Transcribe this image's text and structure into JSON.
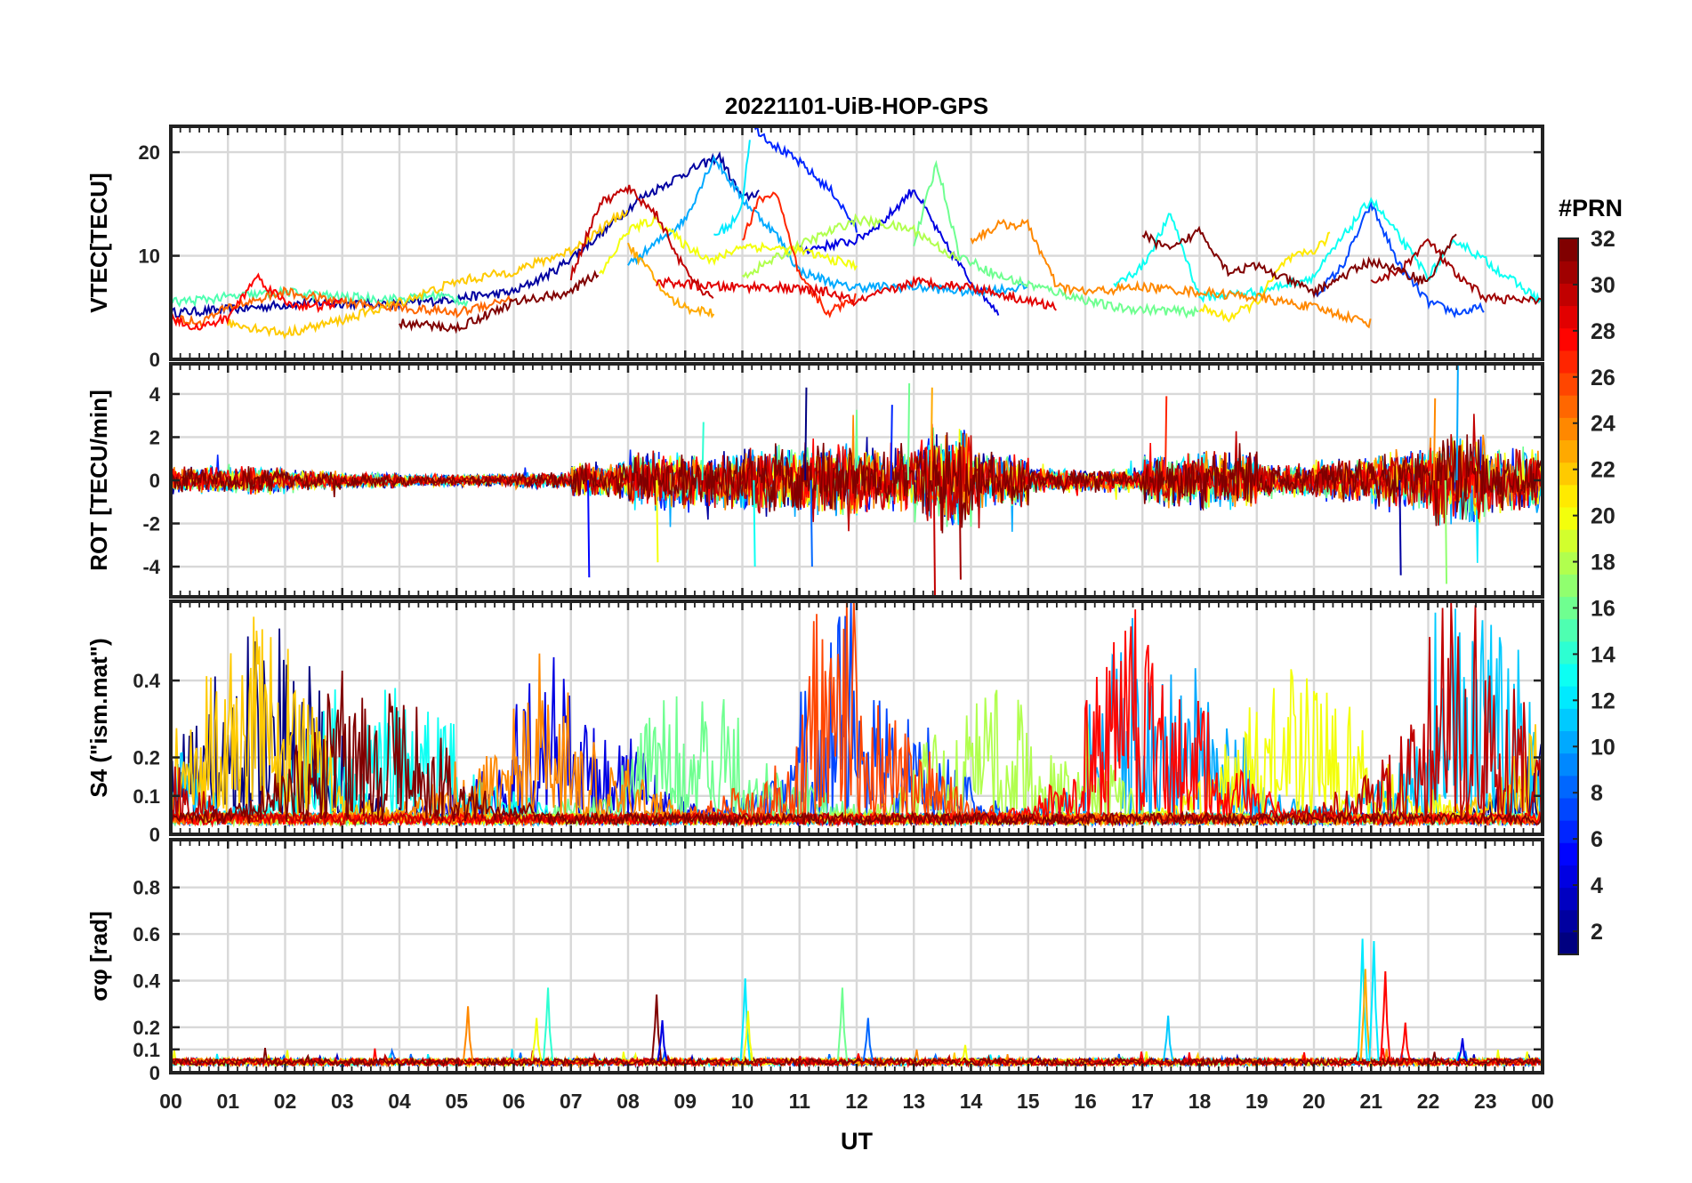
{
  "figure": {
    "title": "20221101-UiB-HOP-GPS",
    "xlabel": "UT",
    "x_tick_labels": [
      "00",
      "01",
      "02",
      "03",
      "04",
      "05",
      "06",
      "07",
      "08",
      "09",
      "10",
      "11",
      "12",
      "13",
      "14",
      "15",
      "16",
      "17",
      "18",
      "19",
      "20",
      "21",
      "22",
      "23",
      "00"
    ]
  },
  "colorbar": {
    "label": "#PRN",
    "tick_labels": [
      "2",
      "4",
      "6",
      "8",
      "10",
      "12",
      "14",
      "16",
      "18",
      "20",
      "22",
      "24",
      "26",
      "28",
      "30",
      "32"
    ],
    "range": [
      1,
      32
    ],
    "colormap": "jet"
  },
  "chart_data": [
    {
      "type": "line",
      "panel": "vtec",
      "ylabel": "VTEC[TECU]",
      "ylim": [
        0,
        22.5
      ],
      "y_ticks": [
        0,
        10,
        20
      ],
      "y_tick_labels": [
        "0",
        "10",
        "20"
      ],
      "xlim": [
        0,
        24
      ],
      "grid": true,
      "note_color_by": "PRN",
      "series": [
        {
          "prn": 2,
          "x": [
            0.0,
            1.0,
            2.5,
            4.0,
            6.0,
            6.7,
            7.5,
            8.2,
            9.0,
            9.6,
            10.0,
            10.3
          ],
          "y": [
            4.5,
            4.8,
            5.5,
            5.3,
            6.5,
            8.5,
            12.0,
            15.5,
            18.0,
            19.6,
            15.5,
            16.2
          ]
        },
        {
          "prn": 4,
          "x": [
            11.0,
            12.0,
            12.5,
            13.0,
            13.5,
            14.0,
            14.5
          ],
          "y": [
            10.5,
            11.5,
            13.5,
            16.5,
            11.5,
            7.5,
            4.5
          ]
        },
        {
          "prn": 6,
          "x": [
            10.2,
            10.6,
            11.0,
            11.6,
            12.0
          ],
          "y": [
            22.5,
            20.5,
            19.0,
            16.0,
            12.5
          ]
        },
        {
          "prn": 7,
          "x": [
            20.0,
            20.5,
            21.0,
            21.5,
            22.0,
            22.5,
            23.0
          ],
          "y": [
            6.0,
            9.0,
            15.0,
            9.0,
            5.5,
            4.5,
            5.0
          ]
        },
        {
          "prn": 10,
          "x": [
            8.0,
            9.0,
            9.5,
            10.0,
            10.6,
            11.0,
            11.8,
            13.0,
            14.0,
            15.0
          ],
          "y": [
            9.0,
            13.5,
            19.5,
            15.5,
            12.0,
            8.5,
            7.0,
            7.0,
            6.5,
            7.0
          ]
        },
        {
          "prn": 12,
          "x": [
            9.5,
            9.8,
            10.0,
            10.15
          ],
          "y": [
            12.0,
            13.0,
            15.0,
            22.5
          ]
        },
        {
          "prn": 13,
          "x": [
            16.5,
            17.0,
            17.5,
            18.0,
            19.0,
            20.0,
            21.0,
            22.0,
            22.5,
            24.0
          ],
          "y": [
            7.0,
            9.0,
            14.0,
            6.0,
            6.5,
            8.0,
            15.5,
            8.0,
            11.5,
            5.5
          ]
        },
        {
          "prn": 15,
          "x": [
            0.0,
            1.0,
            2.0,
            3.0,
            4.0,
            4.7,
            5.2
          ],
          "y": [
            5.5,
            6.0,
            6.5,
            6.0,
            5.8,
            6.2,
            5.5
          ]
        },
        {
          "prn": 16,
          "x": [
            13.0,
            13.4,
            13.8,
            14.5,
            15.5,
            16.5,
            18.0
          ],
          "y": [
            11.0,
            19.0,
            10.0,
            8.0,
            6.5,
            5.0,
            4.5
          ]
        },
        {
          "prn": 18,
          "x": [
            10.0,
            10.5,
            11.0,
            12.0,
            13.0,
            13.8
          ],
          "y": [
            8.0,
            9.5,
            11.0,
            13.5,
            12.5,
            9.5
          ]
        },
        {
          "prn": 20,
          "x": [
            7.5,
            8.0,
            8.5,
            9.0,
            9.5,
            10.0,
            11.0,
            12.0
          ],
          "y": [
            8.0,
            12.5,
            13.5,
            11.0,
            9.5,
            11.0,
            10.5,
            9.0
          ]
        },
        {
          "prn": 21,
          "x": [
            18.0,
            18.5,
            19.0,
            19.5,
            20.0,
            20.3
          ],
          "y": [
            5.0,
            4.0,
            5.5,
            9.5,
            10.5,
            12.0
          ]
        },
        {
          "prn": 22,
          "x": [
            1.0,
            2.0,
            3.0,
            4.0,
            5.0,
            6.0,
            7.0,
            8.0
          ],
          "y": [
            3.5,
            2.5,
            3.8,
            5.5,
            7.5,
            8.5,
            10.5,
            14.5
          ]
        },
        {
          "prn": 23,
          "x": [
            8.0,
            8.3,
            8.7,
            9.0,
            9.5
          ],
          "y": [
            11.0,
            9.0,
            6.0,
            5.0,
            4.5
          ]
        },
        {
          "prn": 24,
          "x": [
            14.0,
            14.5,
            15.0,
            15.5,
            16.0,
            17.0,
            18.0,
            19.0,
            20.0,
            21.0
          ],
          "y": [
            11.5,
            13.0,
            13.0,
            7.0,
            6.5,
            7.0,
            6.5,
            6.0,
            5.0,
            3.5
          ]
        },
        {
          "prn": 25,
          "x": [
            0.0,
            0.5,
            1.0,
            2.0,
            3.0,
            4.0,
            5.0,
            6.0
          ],
          "y": [
            4.0,
            3.5,
            5.0,
            6.5,
            5.5,
            5.0,
            4.5,
            6.0
          ]
        },
        {
          "prn": 27,
          "x": [
            10.0,
            10.3,
            10.6,
            11.0,
            11.5,
            12.0
          ],
          "y": [
            11.5,
            15.5,
            16.0,
            8.0,
            4.5,
            6.0
          ]
        },
        {
          "prn": 28,
          "x": [
            0.0,
            0.5,
            1.0,
            1.5,
            2.0,
            2.5,
            3.0
          ],
          "y": [
            4.0,
            3.0,
            4.0,
            8.0,
            5.5,
            5.0,
            5.5
          ]
        },
        {
          "prn": 29,
          "x": [
            8.5,
            9.5,
            10.5,
            11.5,
            12.0,
            13.0,
            14.0,
            15.5
          ],
          "y": [
            7.5,
            7.0,
            7.0,
            6.5,
            5.5,
            7.5,
            7.0,
            5.0
          ]
        },
        {
          "prn": 30,
          "x": [
            7.0,
            7.5,
            8.0,
            8.5,
            9.0,
            9.5
          ],
          "y": [
            8.0,
            15.0,
            16.5,
            14.0,
            8.5,
            5.5
          ]
        },
        {
          "prn": 31,
          "x": [
            21.0,
            21.5,
            22.0,
            22.5,
            23.0,
            24.0
          ],
          "y": [
            7.5,
            8.5,
            11.5,
            8.0,
            6.0,
            5.5
          ]
        },
        {
          "prn": 32,
          "x": [
            4.0,
            5.0,
            6.0,
            7.0,
            7.5
          ],
          "y": [
            3.5,
            3.0,
            5.5,
            6.5,
            8.5
          ]
        },
        {
          "prn": 32,
          "x": [
            17.0,
            17.5,
            18.0,
            18.5,
            19.0,
            20.0,
            21.0,
            22.0,
            22.5
          ],
          "y": [
            12.0,
            10.5,
            12.5,
            8.5,
            9.0,
            6.5,
            9.5,
            7.5,
            12.5
          ]
        }
      ]
    },
    {
      "type": "line",
      "panel": "rot",
      "ylabel": "ROT [TECU/min]",
      "ylim": [
        -5.4,
        5.4
      ],
      "y_ticks": [
        -4,
        -2,
        0,
        2,
        4
      ],
      "y_tick_labels": [
        "-4",
        "-2",
        "0",
        "2",
        "4"
      ],
      "xlim": [
        0,
        24
      ],
      "grid": true,
      "noise_amplitude_by_hour": [
        0.7,
        0.7,
        0.5,
        0.4,
        0.3,
        0.3,
        0.4,
        0.9,
        1.5,
        1.4,
        1.8,
        2.0,
        1.6,
        2.6,
        1.4,
        0.6,
        0.6,
        1.3,
        1.5,
        0.9,
        1.1,
        1.5,
        2.3,
        1.6
      ],
      "spikes": [
        {
          "x": 11.1,
          "y": 4.3
        },
        {
          "x": 11.2,
          "y": -4.0
        },
        {
          "x": 12.9,
          "y": 4.5
        },
        {
          "x": 13.3,
          "y": 4.3
        },
        {
          "x": 13.35,
          "y": -5.4
        },
        {
          "x": 7.3,
          "y": -4.5
        },
        {
          "x": 10.2,
          "y": -4.0
        },
        {
          "x": 8.5,
          "y": -3.8
        },
        {
          "x": 17.4,
          "y": 3.9
        },
        {
          "x": 21.5,
          "y": -4.4
        },
        {
          "x": 22.5,
          "y": 5.5
        },
        {
          "x": 22.3,
          "y": -4.8
        },
        {
          "x": 22.1,
          "y": 3.8
        },
        {
          "x": 13.8,
          "y": -4.6
        },
        {
          "x": 12.6,
          "y": 3.5
        },
        {
          "x": 9.3,
          "y": 2.7
        }
      ]
    },
    {
      "type": "line",
      "panel": "s4",
      "ylabel": "S4 (\"ism.mat\")",
      "ylim": [
        0,
        0.6
      ],
      "y_ticks": [
        0,
        0.1,
        0.2,
        0.4
      ],
      "y_tick_labels": [
        "0",
        "0.1",
        "0.2",
        "0.4"
      ],
      "xlim": [
        0,
        24
      ],
      "grid": true,
      "peak_level_by_hour": [
        0.45,
        0.55,
        0.6,
        0.35,
        0.35,
        0.25,
        0.45,
        0.3,
        0.4,
        0.35,
        0.3,
        0.6,
        0.35,
        0.45,
        0.35,
        0.25,
        0.6,
        0.45,
        0.45,
        0.4,
        0.35,
        0.3,
        0.6,
        0.6
      ]
    },
    {
      "type": "line",
      "panel": "sigma_phi",
      "ylabel": "σφ [rad]",
      "ylim": [
        0,
        1.0
      ],
      "y_ticks": [
        0,
        0.1,
        0.2,
        0.4,
        0.6,
        0.8
      ],
      "y_tick_labels": [
        "0",
        "0.1",
        "0.2",
        "0.4",
        "0.6",
        "0.8"
      ],
      "xlim": [
        0,
        24
      ],
      "grid": true,
      "baseline": 0.04,
      "spikes": [
        {
          "x": 5.2,
          "y": 0.29,
          "prn": 24
        },
        {
          "x": 6.6,
          "y": 0.37,
          "prn": 14
        },
        {
          "x": 6.4,
          "y": 0.24,
          "prn": 20
        },
        {
          "x": 8.5,
          "y": 0.34,
          "prn": 32
        },
        {
          "x": 8.6,
          "y": 0.23,
          "prn": 4
        },
        {
          "x": 10.05,
          "y": 0.41,
          "prn": 12
        },
        {
          "x": 10.1,
          "y": 0.27,
          "prn": 20
        },
        {
          "x": 11.75,
          "y": 0.37,
          "prn": 16
        },
        {
          "x": 12.2,
          "y": 0.24,
          "prn": 8
        },
        {
          "x": 17.45,
          "y": 0.25,
          "prn": 11
        },
        {
          "x": 20.85,
          "y": 0.58,
          "prn": 12
        },
        {
          "x": 20.9,
          "y": 0.45,
          "prn": 23
        },
        {
          "x": 21.05,
          "y": 0.57,
          "prn": 12
        },
        {
          "x": 21.25,
          "y": 0.44,
          "prn": 28
        },
        {
          "x": 21.6,
          "y": 0.22,
          "prn": 28
        },
        {
          "x": 22.6,
          "y": 0.15,
          "prn": 4
        },
        {
          "x": 13.9,
          "y": 0.12,
          "prn": 20
        }
      ]
    }
  ]
}
